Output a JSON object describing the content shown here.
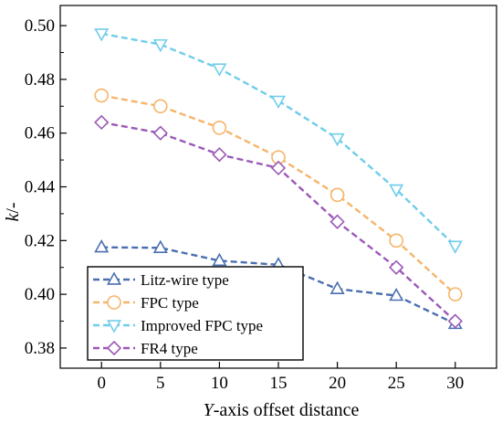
{
  "chart_data": {
    "type": "line",
    "xlabel_italic": "Y",
    "xlabel_rest": "-axis offset distance",
    "ylabel_italic": "k",
    "ylabel_rest": "/-",
    "x": [
      0,
      5,
      10,
      15,
      20,
      25,
      30
    ],
    "x_ticks": [
      "0",
      "5",
      "10",
      "15",
      "20",
      "25",
      "30"
    ],
    "y_ticks": [
      "0.38",
      "0.40",
      "0.42",
      "0.44",
      "0.46",
      "0.48",
      "0.50"
    ],
    "xlim": [
      -3.5,
      33.5
    ],
    "ylim": [
      0.3725,
      0.5075
    ],
    "grid": false,
    "legend_position": "bottom-left",
    "series": [
      {
        "name": "Litz-wire  type",
        "marker": "triangle-up",
        "color": "#4a6fb0",
        "values": [
          0.4175,
          0.4173,
          0.4125,
          0.411,
          0.402,
          0.3995,
          0.389
        ]
      },
      {
        "name": "FPC type",
        "marker": "circle",
        "color": "#f5b56a",
        "values": [
          0.474,
          0.47,
          0.462,
          0.451,
          0.437,
          0.42,
          0.4
        ]
      },
      {
        "name": "Improved FPC type",
        "marker": "triangle-down",
        "color": "#6fcdea",
        "values": [
          0.497,
          0.493,
          0.484,
          0.472,
          0.458,
          0.439,
          0.418
        ]
      },
      {
        "name": "FR4 type",
        "marker": "diamond",
        "color": "#9b59b6",
        "values": [
          0.464,
          0.46,
          0.452,
          0.447,
          0.427,
          0.41,
          0.39
        ]
      }
    ]
  }
}
